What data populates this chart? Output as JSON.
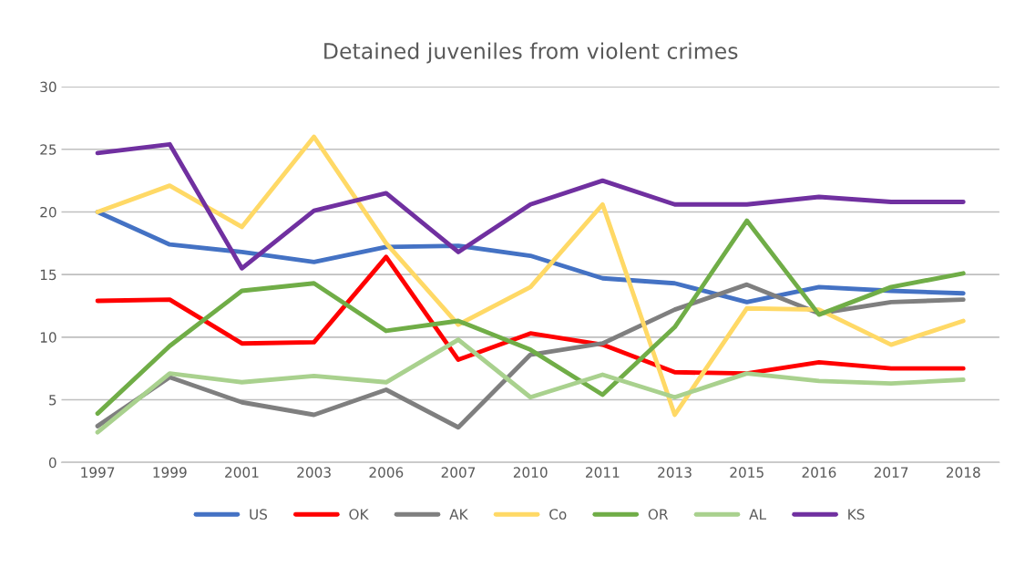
{
  "chart_data": {
    "type": "line",
    "title": "Detained juveniles from violent crimes",
    "categories": [
      "1997",
      "1999",
      "2001",
      "2003",
      "2006",
      "2007",
      "2010",
      "2011",
      "2013",
      "2015",
      "2016",
      "2017",
      "2018"
    ],
    "series": [
      {
        "name": "US",
        "color": "#4472c4",
        "values": [
          20,
          17.4,
          16.8,
          16.0,
          17.2,
          17.3,
          16.5,
          14.7,
          14.3,
          12.8,
          14.0,
          13.7,
          13.5
        ]
      },
      {
        "name": "OK",
        "color": "#ff0000",
        "values": [
          12.9,
          13.0,
          9.5,
          9.6,
          16.4,
          8.2,
          10.3,
          9.4,
          7.2,
          7.1,
          8.0,
          7.5,
          7.5
        ]
      },
      {
        "name": "AK",
        "color": "#7f7f7f",
        "values": [
          2.9,
          6.8,
          4.8,
          3.8,
          5.8,
          2.8,
          8.6,
          9.5,
          12.2,
          14.2,
          11.9,
          12.8,
          13.0
        ]
      },
      {
        "name": "Co",
        "color": "#ffd966",
        "values": [
          20,
          22.1,
          18.8,
          26.0,
          17.5,
          11.0,
          14.0,
          20.6,
          3.8,
          12.3,
          12.2,
          9.4,
          11.3
        ]
      },
      {
        "name": "OR",
        "color": "#70ad47",
        "values": [
          3.9,
          9.3,
          13.7,
          14.3,
          10.5,
          11.3,
          9.0,
          5.4,
          10.8,
          19.3,
          11.8,
          14.0,
          15.1
        ]
      },
      {
        "name": "AL",
        "color": "#a9d18e",
        "values": [
          2.4,
          7.1,
          6.4,
          6.9,
          6.4,
          9.8,
          5.2,
          7.0,
          5.2,
          7.1,
          6.5,
          6.3,
          6.6
        ]
      },
      {
        "name": "KS",
        "color": "#7030a0",
        "values": [
          24.7,
          25.4,
          15.5,
          20.1,
          21.5,
          16.8,
          20.6,
          22.5,
          20.6,
          20.6,
          21.2,
          20.8,
          20.8
        ]
      }
    ],
    "ylim": [
      0,
      30
    ],
    "yticks": [
      0,
      5,
      10,
      15,
      20,
      25,
      30
    ],
    "grid": "y",
    "legend": "bottom"
  }
}
